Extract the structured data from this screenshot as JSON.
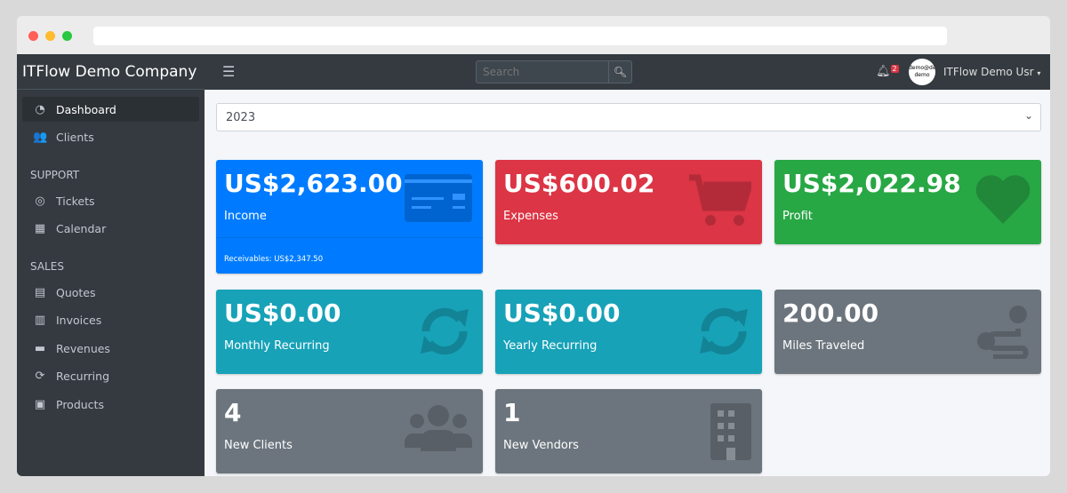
{
  "browser": {
    "dots": [
      "#ff5f57",
      "#febc2e",
      "#28c840"
    ]
  },
  "sidebar": {
    "brand": "ITFlow Demo Company",
    "items": [
      {
        "label": "Dashboard",
        "icon": "tachometer-icon",
        "active": true
      },
      {
        "label": "Clients",
        "icon": "users-icon"
      }
    ],
    "support_header": "SUPPORT",
    "support": [
      {
        "label": "Tickets",
        "icon": "life-ring-icon"
      },
      {
        "label": "Calendar",
        "icon": "calendar-icon"
      }
    ],
    "sales_header": "SALES",
    "sales": [
      {
        "label": "Quotes",
        "icon": "file-icon"
      },
      {
        "label": "Invoices",
        "icon": "invoice-icon"
      },
      {
        "label": "Revenues",
        "icon": "credit-card-icon"
      },
      {
        "label": "Recurring",
        "icon": "sync-icon"
      },
      {
        "label": "Products",
        "icon": "box-icon"
      }
    ]
  },
  "topbar": {
    "search_placeholder": "Search",
    "notifications": "2",
    "avatar_text": "demo@demo demo",
    "user": "ITFlow Demo Usr"
  },
  "year": "2023",
  "cards": [
    {
      "value": "US$2,623.00",
      "label": "Income",
      "footer": "Receivables: US$2,347.50",
      "color": "#007bff",
      "icon": "credit-card-icon"
    },
    {
      "value": "US$600.02",
      "label": "Expenses",
      "color": "#dc3545",
      "icon": "shopping-cart-icon"
    },
    {
      "value": "US$2,022.98",
      "label": "Profit",
      "color": "#28a745",
      "icon": "heart-icon"
    },
    {
      "value": "US$0.00",
      "label": "Monthly Recurring",
      "color": "#17a2b8",
      "icon": "sync-icon"
    },
    {
      "value": "US$0.00",
      "label": "Yearly Recurring",
      "color": "#17a2b8",
      "icon": "sync-icon"
    },
    {
      "value": "200.00",
      "label": "Miles Traveled",
      "color": "#6c757d",
      "icon": "route-icon"
    },
    {
      "value": "4",
      "label": "New Clients",
      "color": "#6c757d",
      "icon": "users-icon"
    },
    {
      "value": "1",
      "label": "New Vendors",
      "color": "#6c757d",
      "icon": "building-icon"
    }
  ]
}
